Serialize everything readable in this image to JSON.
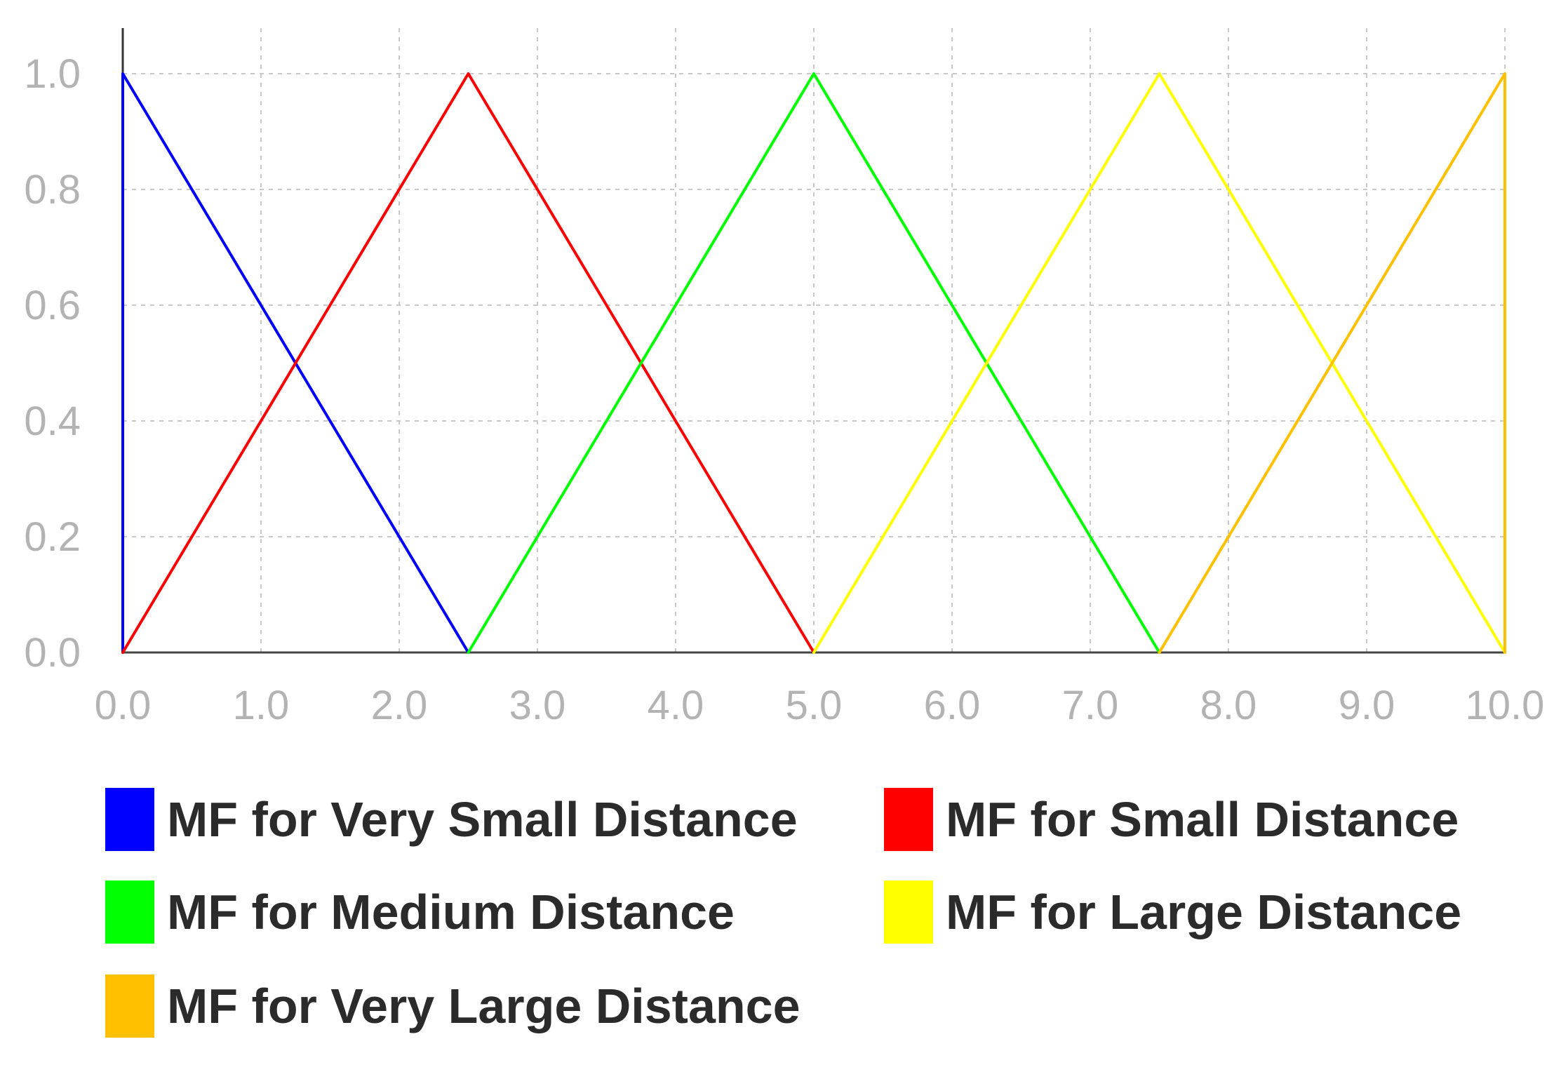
{
  "chart_data": {
    "type": "line",
    "title": "",
    "xlabel": "",
    "ylabel": "",
    "xlim": [
      0,
      10
    ],
    "ylim": [
      0,
      1.08
    ],
    "x_ticks": [
      "0.0",
      "1.0",
      "2.0",
      "3.0",
      "4.0",
      "5.0",
      "6.0",
      "7.0",
      "8.0",
      "9.0",
      "10.0"
    ],
    "y_ticks": [
      "0.0",
      "0.2",
      "0.4",
      "0.6",
      "0.8",
      "1.0"
    ],
    "grid": true,
    "legend_position": "bottom",
    "series": [
      {
        "name": "MF for Very Small Distance",
        "color": "#0000ff",
        "points": [
          [
            0,
            0
          ],
          [
            0,
            1
          ],
          [
            2.5,
            0
          ]
        ]
      },
      {
        "name": "MF for Small Distance",
        "color": "#ff0000",
        "points": [
          [
            0,
            0
          ],
          [
            2.5,
            1
          ],
          [
            5,
            0
          ]
        ]
      },
      {
        "name": "MF for Medium Distance",
        "color": "#00ff00",
        "points": [
          [
            2.5,
            0
          ],
          [
            5,
            1
          ],
          [
            7.5,
            0
          ]
        ]
      },
      {
        "name": "MF for Large Distance",
        "color": "#ffff00",
        "points": [
          [
            5,
            0
          ],
          [
            7.5,
            1
          ],
          [
            10,
            0
          ]
        ]
      },
      {
        "name": "MF for Very Large Distance",
        "color": "#ffc000",
        "points": [
          [
            7.5,
            0
          ],
          [
            10,
            1
          ],
          [
            10,
            0
          ]
        ]
      }
    ]
  }
}
